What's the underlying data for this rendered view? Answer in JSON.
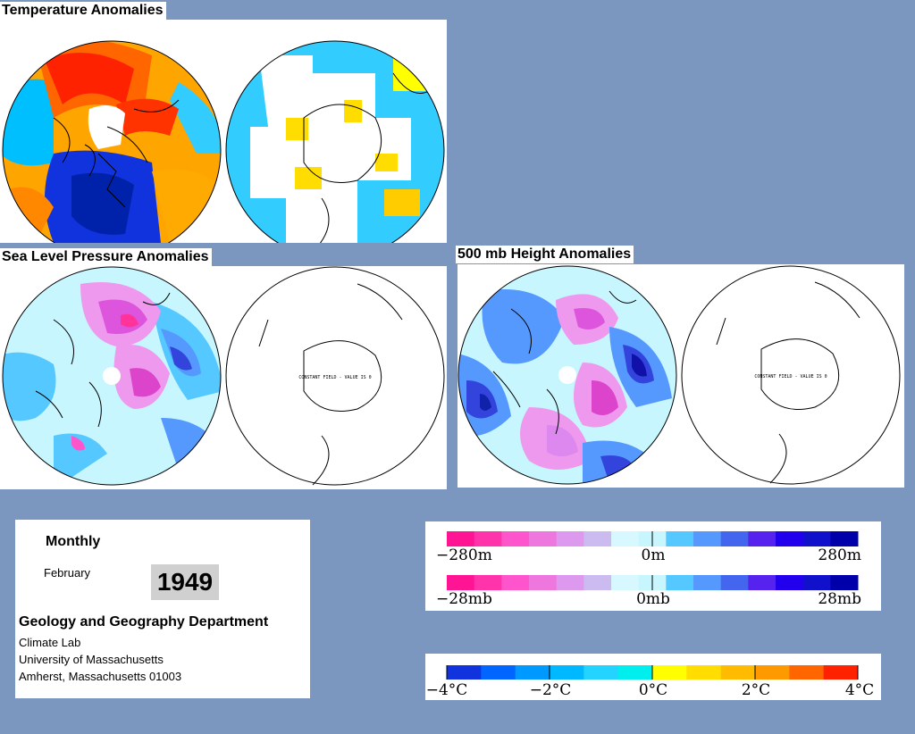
{
  "panels": {
    "temperature_title": "Temperature Anomalies",
    "slp_title": "Sea Level Pressure Anomalies",
    "height_title": "500 mb Height Anomalies",
    "constant_field_text": "CONSTANT FIELD - VALUE IS 0"
  },
  "info": {
    "period": "Monthly",
    "month": "February",
    "year": "1949",
    "department": "Geology and Geography Department",
    "lab": "Climate Lab",
    "university": "University of Massachusetts",
    "address": "Amherst, Massachusetts 01003"
  },
  "legends": {
    "height": {
      "min": "−280m",
      "mid": "0m",
      "max": "280m"
    },
    "pressure": {
      "min": "−28mb",
      "mid": "0mb",
      "max": "28mb"
    },
    "temperature": {
      "t1": "−4°C",
      "t2": "−2°C",
      "t3": "0°C",
      "t4": "2°C",
      "t5": "4°C"
    }
  },
  "colors": {
    "background": "#7b96bf",
    "pressure_scale": [
      "#ff1493",
      "#ff33aa",
      "#ff55cc",
      "#ee77dd",
      "#dd99ee",
      "#ccbbf0",
      "#d8f8ff",
      "#c8f6ff",
      "#55c8ff",
      "#5599ff",
      "#4466ee",
      "#5522ee",
      "#2200ee",
      "#1111cc",
      "#0000aa"
    ],
    "temperature_scale": [
      "#1133dd",
      "#0066ff",
      "#0099ff",
      "#00b8ff",
      "#22d4ff",
      "#00eeee",
      "#ffff00",
      "#ffdd00",
      "#ffbb00",
      "#ff9900",
      "#ff6600",
      "#ff2200"
    ]
  }
}
